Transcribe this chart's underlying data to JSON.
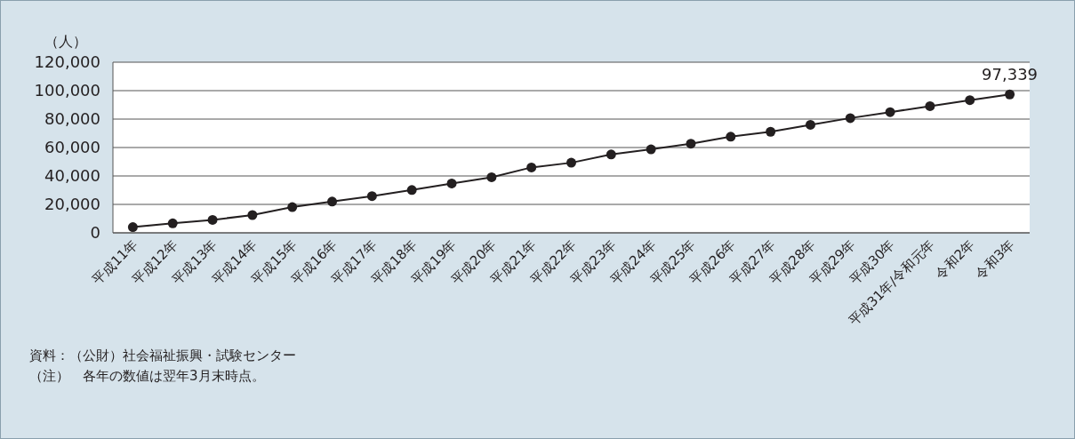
{
  "chart_data": {
    "type": "line",
    "ylabel": "（人）",
    "categories": [
      "平成11年",
      "平成12年",
      "平成13年",
      "平成14年",
      "平成15年",
      "平成16年",
      "平成17年",
      "平成18年",
      "平成19年",
      "平成20年",
      "平成21年",
      "平成22年",
      "平成23年",
      "平成24年",
      "平成25年",
      "平成26年",
      "平成27年",
      "平成28年",
      "平成29年",
      "平成30年",
      "平成31年/令和元年",
      "令和2年",
      "令和3年"
    ],
    "series": [
      {
        "color": "#231f20",
        "values": [
          4000,
          6700,
          9100,
          12500,
          18100,
          22000,
          25800,
          30100,
          34700,
          39100,
          46000,
          49300,
          55100,
          58700,
          62700,
          67600,
          71100,
          76000,
          80700,
          84900,
          89100,
          93300,
          97339
        ],
        "value_labels": [
          null,
          null,
          null,
          null,
          null,
          null,
          null,
          null,
          null,
          null,
          null,
          null,
          null,
          null,
          null,
          null,
          null,
          null,
          null,
          null,
          null,
          null,
          "97,339"
        ]
      }
    ],
    "ylim": [
      0,
      120000
    ],
    "yticks": [
      0,
      {
        "value": 20000,
        "label": "20,000"
      },
      {
        "value": 40000,
        "label": "40,000"
      },
      {
        "value": 60000,
        "label": "60,000"
      },
      {
        "value": 80000,
        "label": "80,000"
      },
      {
        "value": 100000,
        "label": "100,000"
      },
      {
        "value": 120000,
        "label": "120,000"
      }
    ],
    "grid": "y",
    "marker": "circle",
    "line_style": "solid",
    "annotations": [
      "資料：（公財）社会福祉振興・試験センター",
      "（注）　各年の数値は翌年3月末時点。"
    ]
  }
}
